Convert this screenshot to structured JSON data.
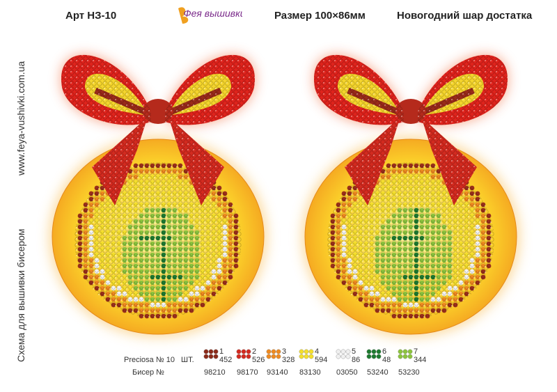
{
  "header": {
    "article": "Арт НЗ-10",
    "logo": "Фея вышивки",
    "size": "Размер 100×86мм",
    "name": "Новогодний шар достатка"
  },
  "side": {
    "site": "www.feya-vushivki.com.ua",
    "caption": "Схема для вышивки бисером"
  },
  "legend": {
    "brand": "Preciosa № 10",
    "count_label": "ШТ.",
    "code_label": "Бисер №",
    "items": [
      {
        "number": "1",
        "count": "452",
        "code": "98210",
        "color": "#8b2a1a"
      },
      {
        "number": "2",
        "count": "526",
        "code": "98170",
        "color": "#d42a1f"
      },
      {
        "number": "3",
        "count": "328",
        "code": "93140",
        "color": "#ef8a20"
      },
      {
        "number": "4",
        "count": "594",
        "code": "83130",
        "color": "#f5df2c"
      },
      {
        "number": "5",
        "count": "86",
        "code": "03050",
        "color": "#f0f0f0"
      },
      {
        "number": "6",
        "count": "48",
        "code": "53240",
        "color": "#1d7a2f"
      },
      {
        "number": "7",
        "count": "344",
        "code": "53230",
        "color": "#8cc43d"
      }
    ]
  }
}
